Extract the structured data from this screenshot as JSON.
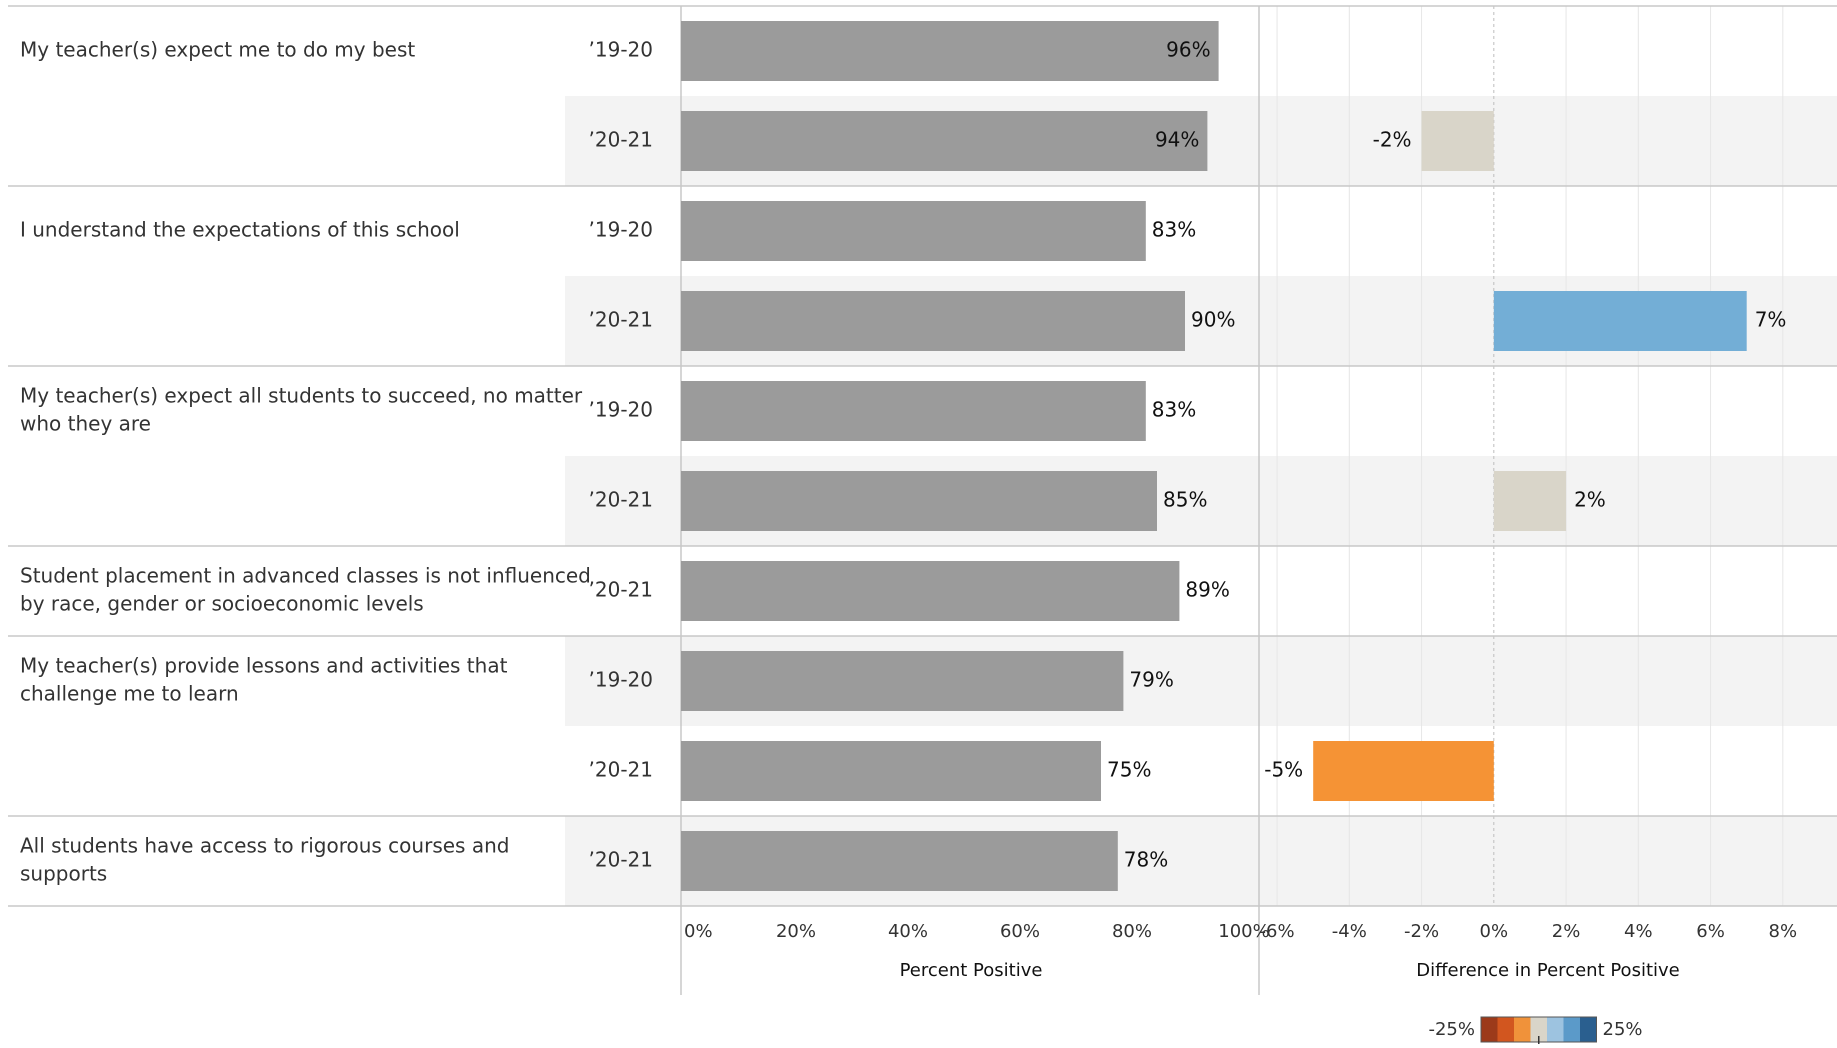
{
  "chart_data": {
    "type": "bar",
    "rows": [
      {
        "question": "My teacher(s) expect me to do my best",
        "year": "’19-20",
        "value": 96,
        "diff": null
      },
      {
        "question": "My teacher(s) expect me to do my best",
        "year": "’20-21",
        "value": 94,
        "diff": -2
      },
      {
        "question": "I understand the expectations of this school",
        "year": "’19-20",
        "value": 83,
        "diff": null
      },
      {
        "question": "I understand the expectations of this school",
        "year": "’20-21",
        "value": 90,
        "diff": 7
      },
      {
        "question": "My teacher(s) expect all students to succeed, no matter who they are",
        "year": "’19-20",
        "value": 83,
        "diff": null
      },
      {
        "question": "My teacher(s) expect all students to succeed, no matter who they are",
        "year": "’20-21",
        "value": 85,
        "diff": 2
      },
      {
        "question": "Student placement in advanced classes is not influenced by race, gender or socioeconomic levels",
        "year": "’20-21",
        "value": 89,
        "diff": null
      },
      {
        "question": "My teacher(s) provide lessons and activities that challenge me to learn",
        "year": "’19-20",
        "value": 79,
        "diff": null
      },
      {
        "question": "My teacher(s) provide lessons and activities that challenge me to learn",
        "year": "’20-21",
        "value": 75,
        "diff": -5
      },
      {
        "question": "All students have access to rigorous courses and supports",
        "year": "’20-21",
        "value": 78,
        "diff": null
      }
    ],
    "questions": [
      {
        "lines": [
          "My teacher(s) expect me to do my best"
        ]
      },
      {
        "lines": [
          "I understand the expectations of this school"
        ]
      },
      {
        "lines": [
          "My teacher(s) expect all students to succeed, no matter",
          "who they are"
        ]
      },
      {
        "lines": [
          "Student placement in advanced classes is not influenced",
          "by race, gender or socioeconomic levels"
        ]
      },
      {
        "lines": [
          "My teacher(s) provide lessons and activities that",
          "challenge me to learn"
        ]
      },
      {
        "lines": [
          "All students have access to rigorous courses and",
          "supports"
        ]
      }
    ],
    "left_axis": {
      "title": "Percent Positive",
      "range": [
        0,
        100
      ],
      "ticks": [
        0,
        20,
        40,
        60,
        80,
        100
      ],
      "tick_labels": [
        "0%",
        "20%",
        "40%",
        "60%",
        "80%",
        "100%"
      ]
    },
    "right_axis": {
      "title": "Difference in Percent Positive",
      "range": [
        -6.5,
        9.5
      ],
      "ticks": [
        -6,
        -4,
        -2,
        0,
        2,
        4,
        6,
        8
      ],
      "tick_labels": [
        "-6%",
        "-4%",
        "-2%",
        "0%",
        "2%",
        "4%",
        "6%",
        "8%"
      ]
    },
    "legend": {
      "min_label": "-25%",
      "max_label": "25%",
      "colors": [
        "#9c3a1a",
        "#d2561f",
        "#f0923a",
        "#d9d5c9",
        "#9dc3e0",
        "#5b9ac9",
        "#2a5f8f"
      ]
    },
    "colors": {
      "bar": "#9b9b9b",
      "diff_negative": "#f59335",
      "diff_small": "#d9d5c9",
      "diff_positive": "#73aed6",
      "band": "#f3f3f3",
      "grid": "#e6e6e6",
      "divider": "#c8c8c8"
    }
  }
}
